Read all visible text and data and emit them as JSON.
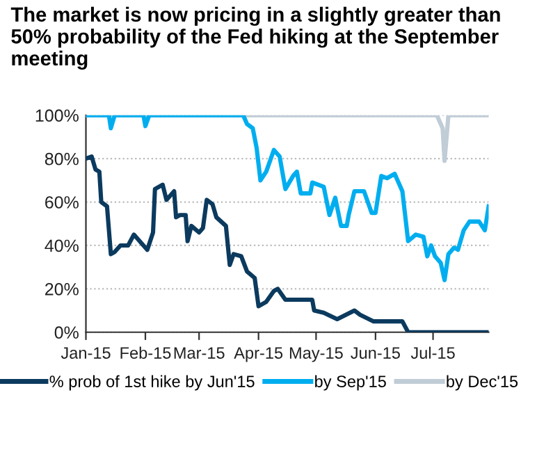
{
  "chart_data": {
    "type": "line",
    "title": "The market is now pricing in a slightly greater than 50% probability of the Fed hiking at the September meeting",
    "series": [
      {
        "name": "% prob of 1st hike by Jun'15",
        "color": "#0b3a5e",
        "x": [
          "2015-01-01",
          "2015-01-04",
          "2015-01-06",
          "2015-01-08",
          "2015-01-09",
          "2015-01-12",
          "2015-01-14",
          "2015-01-16",
          "2015-01-19",
          "2015-01-23",
          "2015-01-26",
          "2015-01-29",
          "2015-02-02",
          "2015-02-05",
          "2015-02-06",
          "2015-02-10",
          "2015-02-12",
          "2015-02-16",
          "2015-02-17",
          "2015-02-19",
          "2015-02-22",
          "2015-02-23",
          "2015-02-25",
          "2015-03-01",
          "2015-03-03",
          "2015-03-05",
          "2015-03-08",
          "2015-03-10",
          "2015-03-15",
          "2015-03-17",
          "2015-03-19",
          "2015-03-23",
          "2015-03-26",
          "2015-03-30",
          "2015-04-01",
          "2015-04-05",
          "2015-04-09",
          "2015-04-11",
          "2015-04-15",
          "2015-04-29",
          "2015-04-30",
          "2015-05-05",
          "2015-05-12",
          "2015-05-21",
          "2015-05-24",
          "2015-05-31",
          "2015-06-15",
          "2015-06-18",
          "2015-07-30"
        ],
        "values": [
          80,
          81,
          75,
          74,
          60,
          58,
          36,
          37,
          40,
          40,
          45,
          42,
          38,
          46,
          66,
          68,
          61,
          65,
          53,
          54,
          54,
          42,
          49,
          46,
          48,
          61,
          59,
          53,
          49,
          31,
          36,
          35,
          28,
          25,
          12,
          14,
          19,
          20,
          15,
          15,
          10,
          9,
          6,
          10,
          8,
          5,
          5,
          0,
          0
        ]
      },
      {
        "name": "by Sep'15",
        "color": "#00aeef",
        "x": [
          "2015-01-01",
          "2015-01-13",
          "2015-01-14",
          "2015-01-16",
          "2015-01-31",
          "2015-02-01",
          "2015-02-03",
          "2015-03-24",
          "2015-03-26",
          "2015-03-29",
          "2015-03-31",
          "2015-04-02",
          "2015-04-05",
          "2015-04-09",
          "2015-04-12",
          "2015-04-15",
          "2015-04-19",
          "2015-04-21",
          "2015-04-23",
          "2015-04-28",
          "2015-04-29",
          "2015-05-05",
          "2015-05-08",
          "2015-05-11",
          "2015-05-14",
          "2015-05-17",
          "2015-05-18",
          "2015-05-21",
          "2015-05-26",
          "2015-05-30",
          "2015-06-01",
          "2015-06-04",
          "2015-06-07",
          "2015-06-11",
          "2015-06-15",
          "2015-06-18",
          "2015-06-22",
          "2015-06-26",
          "2015-06-28",
          "2015-06-30",
          "2015-07-02",
          "2015-07-05",
          "2015-07-07",
          "2015-07-09",
          "2015-07-12",
          "2015-07-14",
          "2015-07-17",
          "2015-07-20",
          "2015-07-25",
          "2015-07-28",
          "2015-07-30"
        ],
        "values": [
          100,
          100,
          94,
          100,
          100,
          95,
          100,
          100,
          96,
          94,
          85,
          70,
          74,
          84,
          81,
          66,
          72,
          74,
          64,
          64,
          69,
          67,
          54,
          62,
          49,
          49,
          54,
          65,
          65,
          55,
          55,
          72,
          71,
          73,
          65,
          42,
          45,
          44,
          35,
          40,
          35,
          32,
          24,
          36,
          39,
          38,
          47,
          51,
          51,
          47,
          58
        ]
      },
      {
        "name": "by Dec'15",
        "color": "#c0ccd6",
        "x": [
          "2015-01-01",
          "2015-07-03",
          "2015-07-06",
          "2015-07-07",
          "2015-07-09",
          "2015-07-30"
        ],
        "values": [
          100,
          100,
          94,
          79,
          100,
          100
        ]
      }
    ],
    "xlim": [
      "2015-01-01",
      "2015-07-30"
    ],
    "xticks": [
      {
        "value": "2015-01-01",
        "label": "Jan-15"
      },
      {
        "value": "2015-02-01",
        "label": "Feb-15"
      },
      {
        "value": "2015-03-01",
        "label": "Mar-15"
      },
      {
        "value": "2015-04-01",
        "label": "Apr-15"
      },
      {
        "value": "2015-05-01",
        "label": "May-15"
      },
      {
        "value": "2015-06-01",
        "label": "Jun-15"
      },
      {
        "value": "2015-07-01",
        "label": "Jul-15"
      }
    ],
    "ylim": [
      0,
      100
    ],
    "yticks": [
      {
        "value": 0,
        "label": "0%"
      },
      {
        "value": 20,
        "label": "20%"
      },
      {
        "value": 40,
        "label": "40%"
      },
      {
        "value": 60,
        "label": "60%"
      },
      {
        "value": 80,
        "label": "80%"
      },
      {
        "value": 100,
        "label": "100%"
      }
    ],
    "grid": "y",
    "legend": "bottom",
    "marker": "none",
    "line_style": "solid"
  }
}
